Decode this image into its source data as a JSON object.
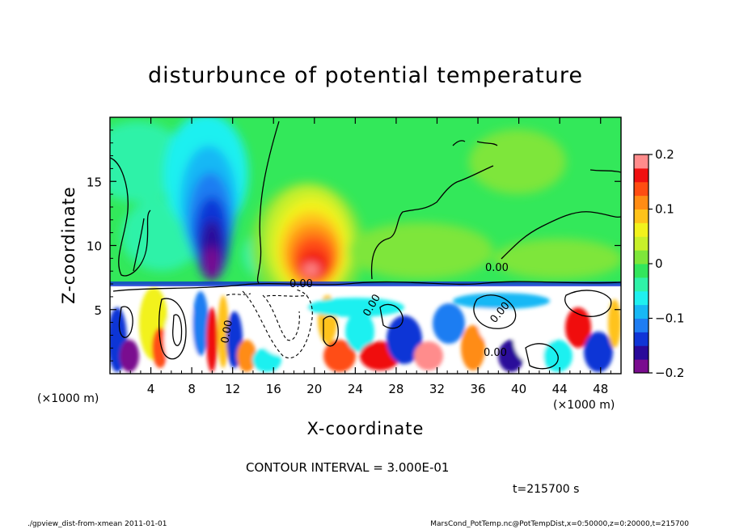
{
  "chart_data": {
    "type": "heatmap",
    "title": "disturbunce of potential temperature",
    "xlabel": "X-coordinate",
    "ylabel": "Z-coordinate",
    "x_unit": "(×1000 m)",
    "z_unit": "(×1000 m)",
    "xlim": [
      0,
      50
    ],
    "ylim": [
      0,
      20
    ],
    "x_ticks": [
      4,
      8,
      12,
      16,
      20,
      24,
      28,
      32,
      36,
      40,
      44,
      48
    ],
    "y_ticks": [
      5,
      10,
      15
    ],
    "colorbar": {
      "range": [
        -0.2,
        0.2
      ],
      "tick_values": [
        0.2,
        0.1,
        0,
        -0.1,
        -0.2
      ],
      "tick_labels": [
        "0.2",
        "0.1",
        "0",
        "−0.1",
        "−0.2"
      ],
      "colors": [
        "#7a0c8f",
        "#2a0a9a",
        "#1035d6",
        "#1f7df2",
        "#17b8f5",
        "#1ff0f0",
        "#2ff2a8",
        "#33e65c",
        "#7ee63a",
        "#c8f02a",
        "#f2f21c",
        "#ffc31a",
        "#ff8c14",
        "#ff4d12",
        "#f01010",
        "#ff8c8c"
      ]
    },
    "contour_interval": "CONTOUR INTERVAL = 3.000E-01",
    "contour_labels": [
      "0.00",
      "0.00",
      "0.00",
      "0.00",
      "0.00",
      "0.00"
    ],
    "features": [
      {
        "kind": "cold-plume",
        "x": 9.5,
        "z_top": 19,
        "min": -0.2
      },
      {
        "kind": "warm-plume",
        "x": 20,
        "z_top": 17,
        "max": 0.2
      },
      {
        "kind": "tropopause-zero-line",
        "z": 7
      }
    ],
    "time": "t=215700 s"
  },
  "footer": {
    "left": "./gpview_dist-from-xmean   2011-01-01",
    "right": "MarsCond_PotTemp.nc@PotTempDist,x=0:50000,z=0:20000,t=215700"
  }
}
